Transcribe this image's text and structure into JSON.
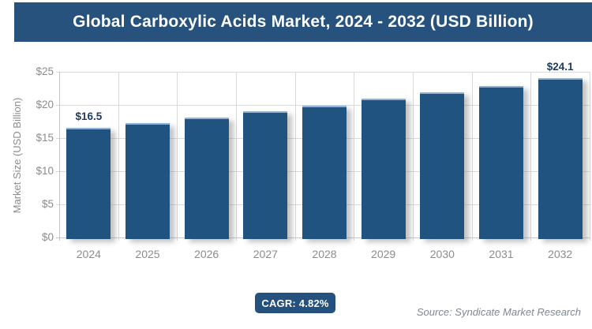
{
  "header": {
    "title": "Global Carboxylic Acids Market, 2024 - 2032 (USD Billion)"
  },
  "chart_data": {
    "type": "bar",
    "title": "Global Carboxylic Acids Market, 2024 - 2032 (USD Billion)",
    "categories": [
      "2024",
      "2025",
      "2026",
      "2027",
      "2028",
      "2029",
      "2030",
      "2031",
      "2032"
    ],
    "values": [
      16.5,
      17.3,
      18.1,
      19.0,
      19.9,
      20.9,
      21.9,
      22.9,
      24.1
    ],
    "bar_labels": [
      "$16.5",
      null,
      null,
      null,
      null,
      null,
      null,
      null,
      "$24.1"
    ],
    "ylabel": "Market Size (USD Billion)",
    "xlabel": "",
    "ylim": [
      0,
      25
    ],
    "yticks": {
      "values": [
        0,
        5,
        10,
        15,
        20,
        25
      ],
      "labels": [
        "$0",
        "$5",
        "$10",
        "$15",
        "$20",
        "$25"
      ]
    },
    "grid": true,
    "legend": false
  },
  "footer": {
    "cagr_label": "CAGR: 4.82%",
    "source": "Source: Syndicate Market Research"
  },
  "colors": {
    "header_bg": "#26527d",
    "bar_fill": "#215380",
    "badge_bg": "#24517e",
    "value_label": "#1e3a5f",
    "grid": "#d9d9d9",
    "tick_text": "#8c8c8c"
  }
}
